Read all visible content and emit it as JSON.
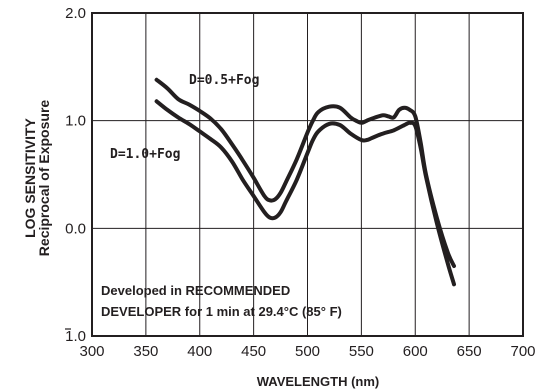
{
  "chart_data": {
    "type": "line",
    "xlabel": "WAVELENGTH (nm)",
    "ylabel": [
      "LOG SENSITIVITY",
      "Reciprocal of Exposure"
    ],
    "xlim": [
      300,
      700
    ],
    "ylim": [
      -1,
      2
    ],
    "x_ticks": [
      300,
      350,
      400,
      450,
      500,
      550,
      600,
      650,
      700
    ],
    "y_ticks": [
      {
        "value": 2,
        "label": "2.0"
      },
      {
        "value": 1,
        "label": "1.0"
      },
      {
        "value": 0,
        "label": "0.0"
      },
      {
        "value": -1,
        "label": "1.0",
        "overbar": true
      }
    ],
    "grid": true,
    "annotation": [
      "Developed in RECOMMENDED",
      "DEVELOPER for 1 min at 29.4°C (85° F)"
    ],
    "series": [
      {
        "name": "D=0.5+Fog",
        "x": [
          360,
          370,
          380,
          390,
          400,
          410,
          420,
          430,
          440,
          450,
          460,
          465,
          470,
          475,
          480,
          490,
          500,
          505,
          510,
          520,
          530,
          540,
          545,
          550,
          555,
          560,
          570,
          575,
          580,
          585,
          590,
          595,
          600,
          605,
          610,
          620,
          630,
          636
        ],
        "y": [
          1.38,
          1.3,
          1.2,
          1.15,
          1.09,
          1.02,
          0.92,
          0.78,
          0.63,
          0.47,
          0.3,
          0.26,
          0.27,
          0.33,
          0.43,
          0.64,
          0.89,
          1.0,
          1.08,
          1.13,
          1.12,
          1.03,
          1.0,
          0.98,
          1.0,
          1.02,
          1.05,
          1.04,
          1.03,
          1.1,
          1.12,
          1.1,
          1.04,
          0.8,
          0.5,
          0.1,
          -0.22,
          -0.35
        ]
      },
      {
        "name": "D=1.0+Fog",
        "x": [
          360,
          370,
          380,
          390,
          400,
          410,
          420,
          430,
          440,
          450,
          460,
          465,
          470,
          475,
          480,
          490,
          500,
          505,
          510,
          520,
          530,
          540,
          550,
          555,
          560,
          570,
          580,
          590,
          595,
          600,
          605,
          610,
          620,
          630,
          636
        ],
        "y": [
          1.18,
          1.1,
          1.03,
          0.97,
          0.9,
          0.83,
          0.75,
          0.62,
          0.45,
          0.3,
          0.15,
          0.1,
          0.1,
          0.15,
          0.25,
          0.45,
          0.7,
          0.82,
          0.9,
          0.97,
          0.96,
          0.88,
          0.82,
          0.82,
          0.84,
          0.88,
          0.91,
          0.96,
          0.98,
          0.95,
          0.75,
          0.48,
          0.05,
          -0.32,
          -0.52
        ]
      }
    ]
  }
}
